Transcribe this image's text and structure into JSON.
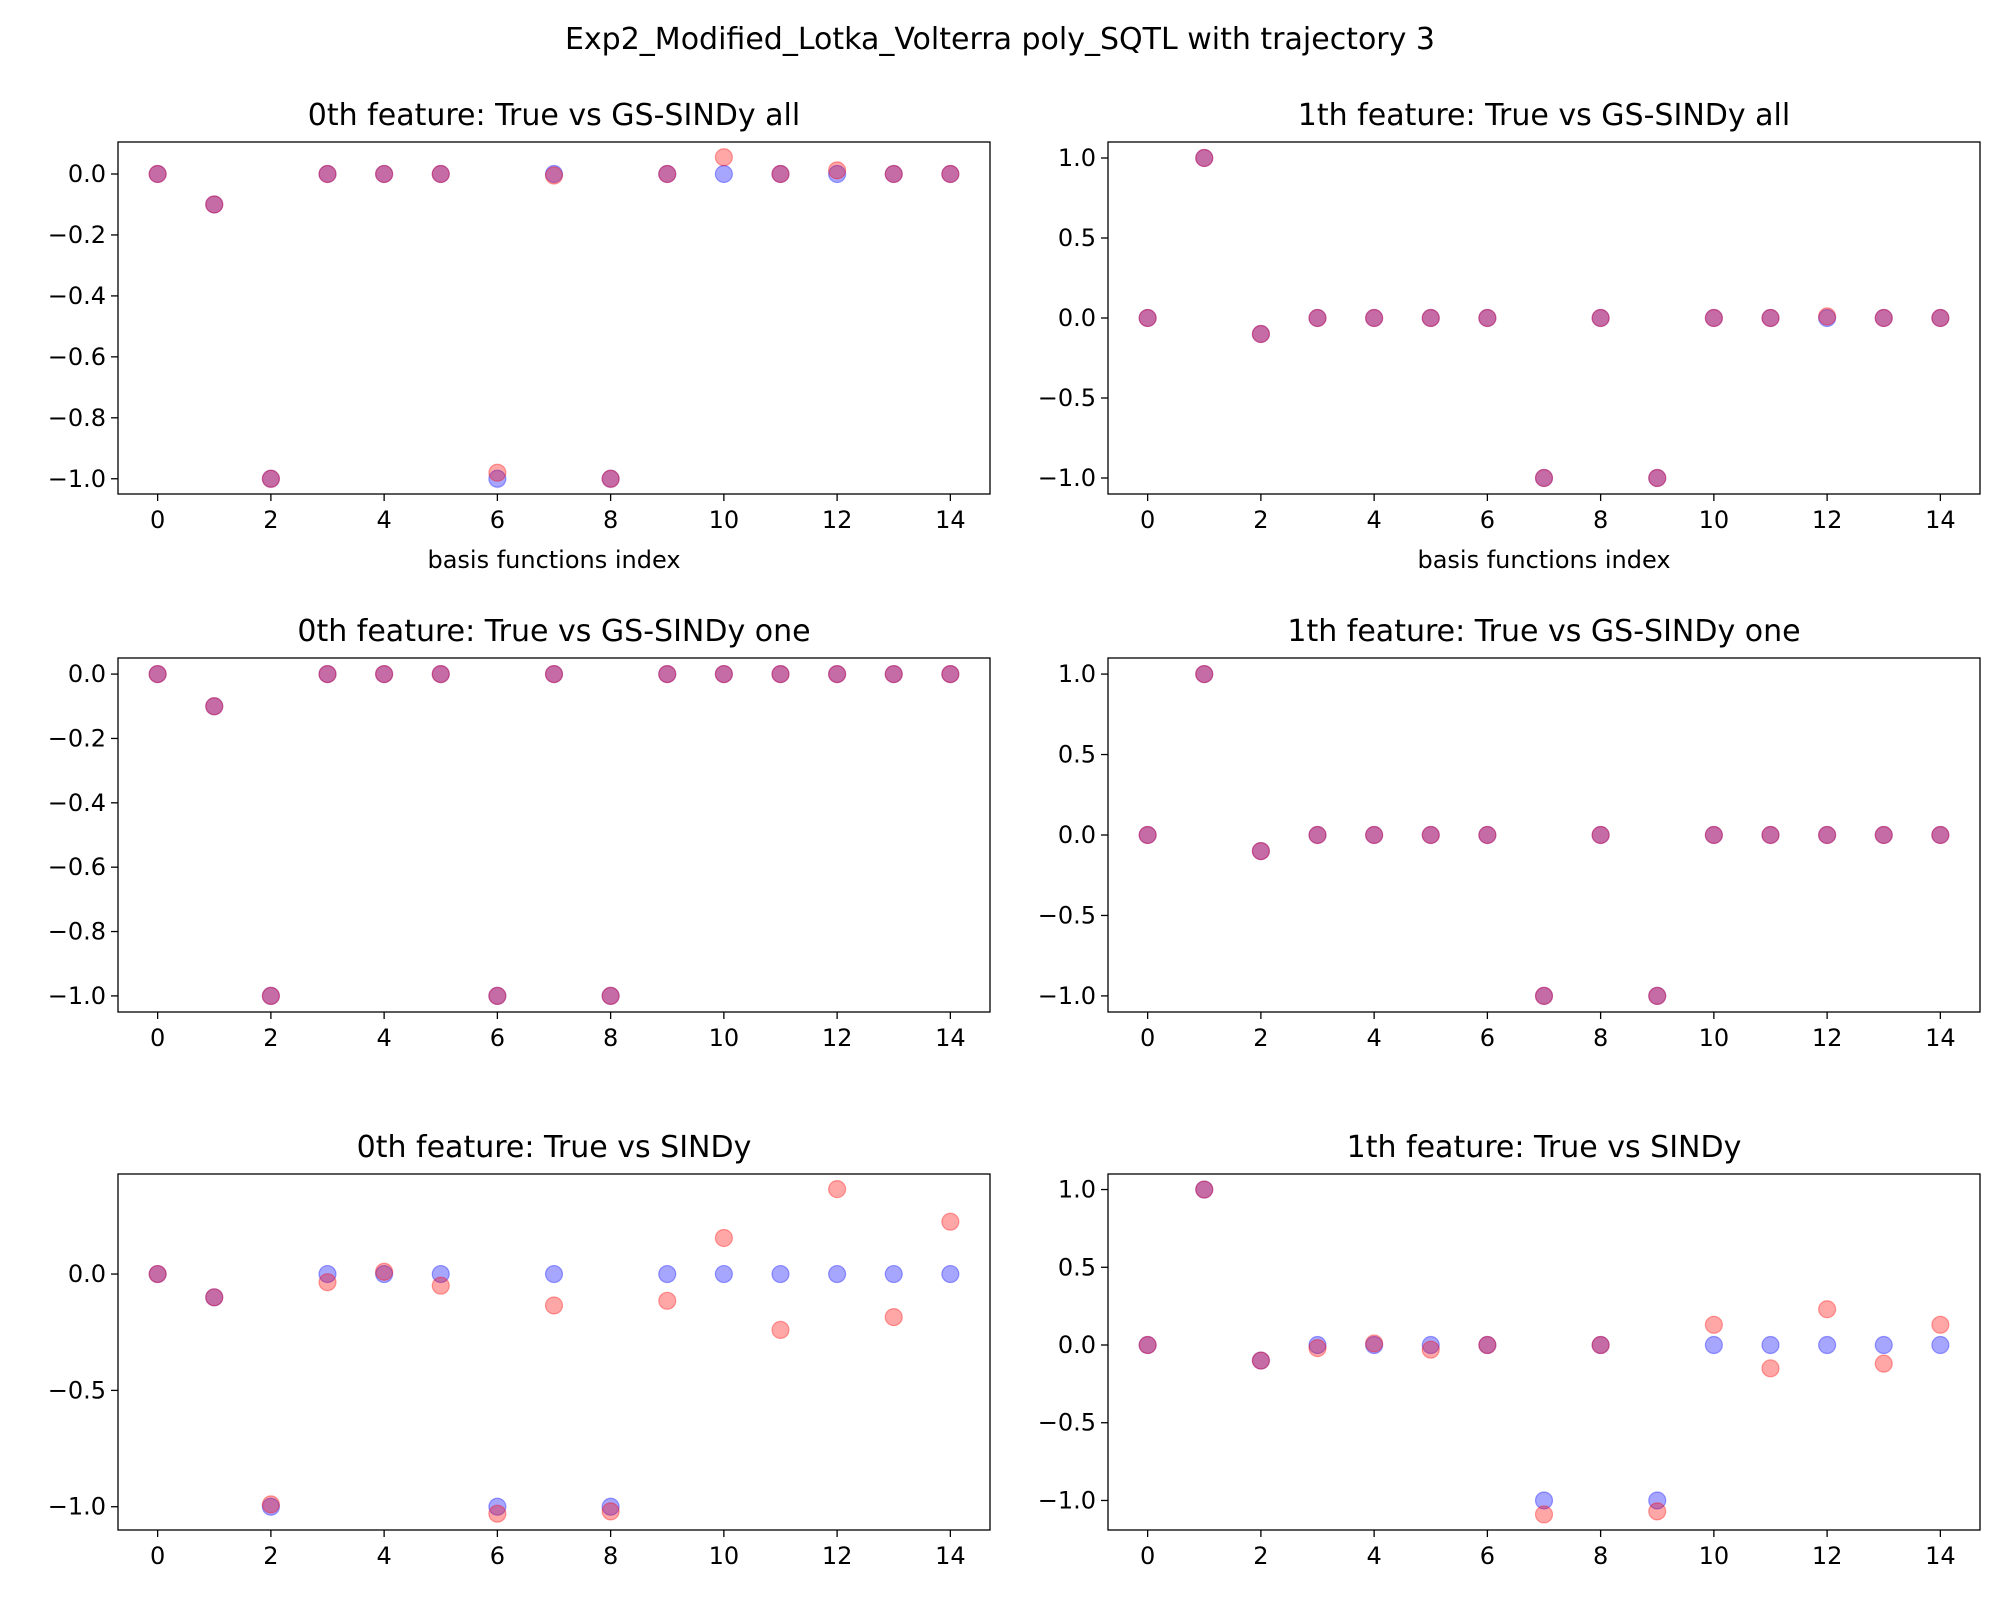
{
  "figure_title": "Exp2_Modified_Lotka_Volterra poly_SQTL with trajectory 3",
  "colors": {
    "true": "#0000ff",
    "pred": "#ff0000"
  },
  "chart_data": [
    {
      "type": "scatter",
      "title": "0th feature: True vs GS-SINDy all",
      "xlabel": "basis functions index",
      "x": [
        0,
        1,
        2,
        3,
        4,
        5,
        6,
        7,
        8,
        9,
        10,
        11,
        12,
        13,
        14
      ],
      "xlim": [
        -0.7,
        14.7
      ],
      "ylim": [
        -1.05,
        0.105
      ],
      "xticks": [
        0,
        2,
        4,
        6,
        8,
        10,
        12,
        14
      ],
      "yticks": [
        0.0,
        -0.2,
        -0.4,
        -0.6,
        -0.8,
        -1.0
      ],
      "ytick_labels": [
        "0.0",
        "−0.2",
        "−0.4",
        "−0.6",
        "−0.8",
        "−1.0"
      ],
      "series": [
        {
          "values": [
            0,
            -0.1,
            -1,
            0,
            0,
            0,
            -1,
            0,
            -1,
            0,
            0,
            0,
            0,
            0,
            0
          ]
        },
        {
          "values": [
            0,
            -0.1,
            -1,
            0,
            0,
            0,
            -0.98,
            -0.005,
            -1,
            0,
            0.055,
            0,
            0.012,
            0,
            0
          ]
        }
      ]
    },
    {
      "type": "scatter",
      "title": "1th feature: True vs GS-SINDy all",
      "xlabel": "basis functions index",
      "x": [
        0,
        1,
        2,
        3,
        4,
        5,
        6,
        7,
        8,
        9,
        10,
        11,
        12,
        13,
        14
      ],
      "xlim": [
        -0.7,
        14.7
      ],
      "ylim": [
        -1.1,
        1.1
      ],
      "xticks": [
        0,
        2,
        4,
        6,
        8,
        10,
        12,
        14
      ],
      "yticks": [
        1.0,
        0.5,
        0.0,
        -0.5,
        -1.0
      ],
      "ytick_labels": [
        "1.0",
        "0.5",
        "0.0",
        "−0.5",
        "−1.0"
      ],
      "series": [
        {
          "values": [
            0,
            1,
            -0.1,
            0,
            0,
            0,
            0,
            -1,
            0,
            -1,
            0,
            0,
            0,
            0,
            0
          ]
        },
        {
          "values": [
            0,
            1,
            -0.1,
            0,
            0,
            0,
            0,
            -1,
            0,
            -1,
            0,
            0,
            0.01,
            0,
            0
          ]
        }
      ]
    },
    {
      "type": "scatter",
      "title": "0th feature: True vs GS-SINDy one",
      "xlabel": "",
      "x": [
        0,
        1,
        2,
        3,
        4,
        5,
        6,
        7,
        8,
        9,
        10,
        11,
        12,
        13,
        14
      ],
      "xlim": [
        -0.7,
        14.7
      ],
      "ylim": [
        -1.05,
        0.05
      ],
      "xticks": [
        0,
        2,
        4,
        6,
        8,
        10,
        12,
        14
      ],
      "yticks": [
        0.0,
        -0.2,
        -0.4,
        -0.6,
        -0.8,
        -1.0
      ],
      "ytick_labels": [
        "0.0",
        "−0.2",
        "−0.4",
        "−0.6",
        "−0.8",
        "−1.0"
      ],
      "series": [
        {
          "values": [
            0,
            -0.1,
            -1,
            0,
            0,
            0,
            -1,
            0,
            -1,
            0,
            0,
            0,
            0,
            0,
            0
          ]
        },
        {
          "values": [
            0,
            -0.1,
            -1,
            0,
            0,
            0,
            -1,
            0,
            -1,
            0,
            0,
            0,
            0,
            0,
            0
          ]
        }
      ]
    },
    {
      "type": "scatter",
      "title": "1th feature: True vs GS-SINDy one",
      "xlabel": "",
      "x": [
        0,
        1,
        2,
        3,
        4,
        5,
        6,
        7,
        8,
        9,
        10,
        11,
        12,
        13,
        14
      ],
      "xlim": [
        -0.7,
        14.7
      ],
      "ylim": [
        -1.1,
        1.1
      ],
      "xticks": [
        0,
        2,
        4,
        6,
        8,
        10,
        12,
        14
      ],
      "yticks": [
        1.0,
        0.5,
        0.0,
        -0.5,
        -1.0
      ],
      "ytick_labels": [
        "1.0",
        "0.5",
        "0.0",
        "−0.5",
        "−1.0"
      ],
      "series": [
        {
          "values": [
            0,
            1,
            -0.1,
            0,
            0,
            0,
            0,
            -1,
            0,
            -1,
            0,
            0,
            0,
            0,
            0
          ]
        },
        {
          "values": [
            0,
            1,
            -0.1,
            0,
            0,
            0,
            0,
            -1,
            0,
            -1,
            0,
            0,
            0,
            0,
            0
          ]
        }
      ]
    },
    {
      "type": "scatter",
      "title": "0th feature: True vs SINDy",
      "xlabel": "",
      "x": [
        0,
        1,
        2,
        3,
        4,
        5,
        6,
        7,
        8,
        9,
        10,
        11,
        12,
        13,
        14
      ],
      "xlim": [
        -0.7,
        14.7
      ],
      "ylim": [
        -1.1,
        0.43
      ],
      "xticks": [
        0,
        2,
        4,
        6,
        8,
        10,
        12,
        14
      ],
      "yticks": [
        0.0,
        -0.5,
        -1.0
      ],
      "ytick_labels": [
        "0.0",
        "−0.5",
        "−1.0"
      ],
      "series": [
        {
          "values": [
            0,
            -0.1,
            -1,
            0,
            0,
            0,
            -1,
            0,
            -1,
            0,
            0,
            0,
            0,
            0,
            0
          ]
        },
        {
          "values": [
            0,
            -0.1,
            -0.99,
            -0.035,
            0.01,
            -0.05,
            -1.03,
            -0.135,
            -1.02,
            -0.115,
            0.155,
            -0.24,
            0.365,
            -0.185,
            0.225
          ]
        }
      ]
    },
    {
      "type": "scatter",
      "title": "1th feature: True vs SINDy",
      "xlabel": "",
      "x": [
        0,
        1,
        2,
        3,
        4,
        5,
        6,
        7,
        8,
        9,
        10,
        11,
        12,
        13,
        14
      ],
      "xlim": [
        -0.7,
        14.7
      ],
      "ylim": [
        -1.19,
        1.1
      ],
      "xticks": [
        0,
        2,
        4,
        6,
        8,
        10,
        12,
        14
      ],
      "yticks": [
        1.0,
        0.5,
        0.0,
        -0.5,
        -1.0
      ],
      "ytick_labels": [
        "1.0",
        "0.5",
        "0.0",
        "−0.5",
        "−1.0"
      ],
      "series": [
        {
          "values": [
            0,
            1,
            -0.1,
            0,
            0,
            0,
            0,
            -1,
            0,
            -1,
            0,
            0,
            0,
            0,
            0
          ]
        },
        {
          "values": [
            0,
            1,
            -0.1,
            -0.02,
            0.01,
            -0.03,
            0,
            -1.09,
            0,
            -1.07,
            0.13,
            -0.15,
            0.23,
            -0.12,
            0.13
          ]
        }
      ]
    }
  ]
}
